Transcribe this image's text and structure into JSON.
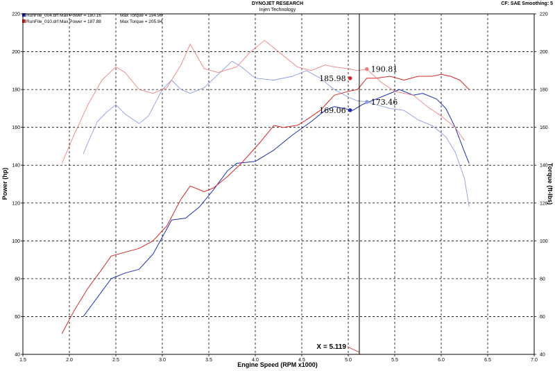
{
  "header": {
    "title": "DYNOJET RESEARCH",
    "subtitle": "Injen Technology",
    "info": "CF: SAE  Smoothing: 5"
  },
  "legend": [
    {
      "label": "RunFile_004.drf Max Power = 180.16",
      "torque": "Max Torque = 194.96",
      "color": "#1d2fb5"
    },
    {
      "label": "RunFile_010.drf Max Power = 187.88",
      "torque": "Max Torque = 205.94",
      "color": "#d62828"
    }
  ],
  "cursor": {
    "label": "X = 5.119",
    "x": 5.119
  },
  "markers": [
    {
      "text": "190.81",
      "x": 5.2,
      "y": 190.81,
      "color": "#f08080",
      "side": "right"
    },
    {
      "text": "185.98",
      "x": 5.02,
      "y": 185.98,
      "color": "#d62828",
      "side": "left"
    },
    {
      "text": "173.46",
      "x": 5.2,
      "y": 173.46,
      "color": "#8a9be6",
      "side": "right"
    },
    {
      "text": "169.06",
      "x": 5.02,
      "y": 169.06,
      "color": "#1d2fb5",
      "side": "left"
    }
  ],
  "chart_data": {
    "type": "line",
    "xlabel": "Engine Speed (RPM x1000)",
    "ylabel": "Power (hp)",
    "y2label": "Torque (ft-lbs)",
    "xlim": [
      1.5,
      7.0
    ],
    "ylim": [
      40,
      220
    ],
    "xticks": [
      "1.5",
      "2.0",
      "2.5",
      "3.0",
      "3.5",
      "4.0",
      "4.5",
      "5.0",
      "5.5",
      "6.0",
      "6.5",
      "7.0"
    ],
    "yticks": [
      "40",
      "60",
      "80",
      "100",
      "120",
      "140",
      "160",
      "180",
      "200",
      "220"
    ],
    "y2ticks": [
      "40",
      "60",
      "80",
      "100",
      "120",
      "140",
      "160",
      "180",
      "200",
      "220"
    ],
    "grid": true,
    "series": [
      {
        "name": "RunFile_004.drf Power",
        "color": "#1d2fb5",
        "width": 1,
        "points": [
          [
            2.15,
            60
          ],
          [
            2.3,
            70
          ],
          [
            2.45,
            80
          ],
          [
            2.6,
            83
          ],
          [
            2.75,
            85
          ],
          [
            2.9,
            93
          ],
          [
            3.0,
            102
          ],
          [
            3.1,
            111
          ],
          [
            3.25,
            112
          ],
          [
            3.4,
            118
          ],
          [
            3.55,
            127
          ],
          [
            3.7,
            137
          ],
          [
            3.8,
            141
          ],
          [
            4.0,
            142
          ],
          [
            4.2,
            148
          ],
          [
            4.4,
            156
          ],
          [
            4.6,
            163
          ],
          [
            4.75,
            169
          ],
          [
            4.85,
            171
          ],
          [
            4.95,
            170
          ],
          [
            5.05,
            169
          ],
          [
            5.15,
            172
          ],
          [
            5.3,
            175
          ],
          [
            5.45,
            178
          ],
          [
            5.55,
            180
          ],
          [
            5.7,
            177
          ],
          [
            5.8,
            178
          ],
          [
            5.95,
            175
          ],
          [
            6.05,
            170
          ],
          [
            6.15,
            160
          ],
          [
            6.25,
            147
          ],
          [
            6.3,
            141
          ]
        ]
      },
      {
        "name": "RunFile_004.drf Torque",
        "color": "#8a9be6",
        "width": 0.9,
        "points": [
          [
            2.15,
            146
          ],
          [
            2.2,
            152
          ],
          [
            2.3,
            163
          ],
          [
            2.4,
            168
          ],
          [
            2.5,
            172
          ],
          [
            2.6,
            167
          ],
          [
            2.75,
            162
          ],
          [
            2.85,
            166
          ],
          [
            3.0,
            180
          ],
          [
            3.1,
            185
          ],
          [
            3.2,
            180
          ],
          [
            3.3,
            178
          ],
          [
            3.45,
            181
          ],
          [
            3.6,
            188
          ],
          [
            3.75,
            195
          ],
          [
            3.85,
            192
          ],
          [
            4.0,
            186
          ],
          [
            4.2,
            185
          ],
          [
            4.4,
            187
          ],
          [
            4.55,
            190
          ],
          [
            4.7,
            186
          ],
          [
            4.85,
            180
          ],
          [
            5.0,
            176
          ],
          [
            5.1,
            174
          ],
          [
            5.2,
            173.5
          ],
          [
            5.3,
            172
          ],
          [
            5.45,
            170
          ],
          [
            5.6,
            169
          ],
          [
            5.75,
            164
          ],
          [
            5.9,
            161
          ],
          [
            6.05,
            155
          ],
          [
            6.15,
            147
          ],
          [
            6.25,
            133
          ],
          [
            6.3,
            118
          ]
        ]
      },
      {
        "name": "RunFile_010.drf Power",
        "color": "#d62828",
        "width": 1,
        "points": [
          [
            1.92,
            51
          ],
          [
            2.05,
            63
          ],
          [
            2.2,
            75
          ],
          [
            2.35,
            85
          ],
          [
            2.45,
            92
          ],
          [
            2.6,
            94
          ],
          [
            2.75,
            96
          ],
          [
            2.9,
            100
          ],
          [
            3.05,
            108
          ],
          [
            3.2,
            122
          ],
          [
            3.3,
            129
          ],
          [
            3.45,
            126
          ],
          [
            3.55,
            128
          ],
          [
            3.7,
            134
          ],
          [
            3.85,
            141
          ],
          [
            4.05,
            152
          ],
          [
            4.2,
            161
          ],
          [
            4.3,
            160
          ],
          [
            4.45,
            161
          ],
          [
            4.55,
            164
          ],
          [
            4.7,
            169
          ],
          [
            4.85,
            177
          ],
          [
            5.0,
            179
          ],
          [
            5.1,
            180
          ],
          [
            5.2,
            186
          ],
          [
            5.3,
            186
          ],
          [
            5.45,
            187
          ],
          [
            5.6,
            185
          ],
          [
            5.75,
            187
          ],
          [
            5.9,
            187
          ],
          [
            6.0,
            188
          ],
          [
            6.1,
            187
          ],
          [
            6.2,
            185
          ],
          [
            6.3,
            180
          ]
        ]
      },
      {
        "name": "RunFile_010.drf Torque",
        "color": "#f08080",
        "width": 0.9,
        "points": [
          [
            1.92,
            141
          ],
          [
            2.05,
            156
          ],
          [
            2.2,
            172
          ],
          [
            2.35,
            185
          ],
          [
            2.5,
            192
          ],
          [
            2.6,
            189
          ],
          [
            2.75,
            180
          ],
          [
            2.9,
            178
          ],
          [
            3.05,
            181
          ],
          [
            3.2,
            193
          ],
          [
            3.3,
            204
          ],
          [
            3.45,
            191
          ],
          [
            3.6,
            189
          ],
          [
            3.8,
            192
          ],
          [
            3.95,
            200
          ],
          [
            4.1,
            206
          ],
          [
            4.25,
            200
          ],
          [
            4.45,
            192
          ],
          [
            4.6,
            190
          ],
          [
            4.75,
            193
          ],
          [
            4.85,
            192
          ],
          [
            5.0,
            191
          ],
          [
            5.1,
            190
          ],
          [
            5.2,
            190.8
          ],
          [
            5.35,
            184
          ],
          [
            5.5,
            179
          ],
          [
            5.7,
            177
          ],
          [
            5.85,
            171
          ],
          [
            6.0,
            166
          ],
          [
            6.15,
            160
          ],
          [
            6.25,
            153
          ]
        ]
      }
    ]
  }
}
